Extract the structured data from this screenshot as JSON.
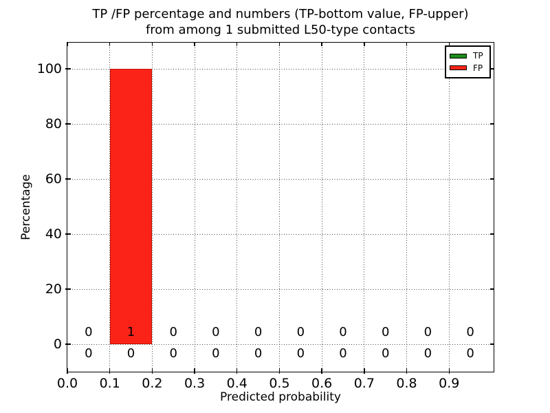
{
  "chart_data": {
    "type": "bar",
    "title_line1": "TP /FP percentage and numbers (TP-bottom value, FP-upper)",
    "title_line2": "from among 1 submitted L50-type contacts",
    "xlabel": "Predicted probability",
    "ylabel": "Percentage",
    "xlim": [
      0,
      1.005
    ],
    "ylim": [
      -10,
      109.5
    ],
    "grid": true,
    "xticks": [
      0.0,
      0.1,
      0.2,
      0.3,
      0.4,
      0.5,
      0.6,
      0.7,
      0.8,
      0.9
    ],
    "xtick_labels": [
      "0.0",
      "0.1",
      "0.2",
      "0.3",
      "0.4",
      "0.5",
      "0.6",
      "0.7",
      "0.8",
      "0.9"
    ],
    "yticks": [
      0,
      20,
      40,
      60,
      80,
      100
    ],
    "ytick_labels": [
      "0",
      "20",
      "40",
      "60",
      "80",
      "100"
    ],
    "bin_edges": [
      0.0,
      0.1,
      0.2,
      0.3,
      0.4,
      0.5,
      0.6,
      0.7,
      0.8,
      0.9,
      1.0
    ],
    "bin_centers": [
      0.05,
      0.15,
      0.25,
      0.35,
      0.45,
      0.55,
      0.65,
      0.75,
      0.85,
      0.95
    ],
    "series": [
      {
        "name": "TP",
        "color": "#1d8a1d",
        "percent": [
          0,
          0,
          0,
          0,
          0,
          0,
          0,
          0,
          0,
          0
        ],
        "counts": [
          0,
          0,
          0,
          0,
          0,
          0,
          0,
          0,
          0,
          0
        ],
        "count_row": "bottom"
      },
      {
        "name": "FP",
        "color": "#fb2318",
        "percent": [
          0,
          100,
          0,
          0,
          0,
          0,
          0,
          0,
          0,
          0
        ],
        "counts": [
          0,
          1,
          0,
          0,
          0,
          0,
          0,
          0,
          0,
          0
        ],
        "count_row": "top"
      }
    ],
    "legend": {
      "position": "upper right",
      "entries": [
        "TP",
        "FP"
      ]
    }
  }
}
